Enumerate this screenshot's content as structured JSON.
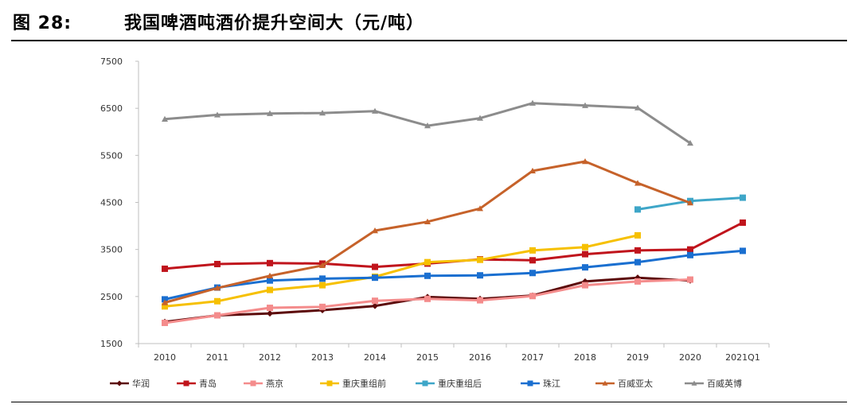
{
  "header": {
    "figure_number": "图 28:",
    "title": "我国啤酒吨酒价提升空间大（元/吨）"
  },
  "chart_data": {
    "type": "line",
    "title": "我国啤酒吨酒价提升空间大（元/吨）",
    "xlabel": "",
    "ylabel": "",
    "categories": [
      "2010",
      "2011",
      "2012",
      "2013",
      "2014",
      "2015",
      "2016",
      "2017",
      "2018",
      "2019",
      "2020",
      "2021Q1"
    ],
    "y_ticks": [
      1500,
      2500,
      3500,
      4500,
      5500,
      6500,
      7500
    ],
    "ylim": [
      1500,
      7500
    ],
    "grid": false,
    "legend_position": "bottom",
    "series": [
      {
        "name": "华润",
        "color": "#5c0a0a",
        "marker": "diamond",
        "values": [
          1960,
          2100,
          2140,
          2210,
          2300,
          2490,
          2450,
          2520,
          2820,
          2900,
          2840,
          null
        ]
      },
      {
        "name": "青岛",
        "color": "#c0141c",
        "marker": "square",
        "values": [
          3090,
          3190,
          3210,
          3200,
          3130,
          3200,
          3290,
          3270,
          3400,
          3480,
          3500,
          4070
        ]
      },
      {
        "name": "燕京",
        "color": "#f48c8c",
        "marker": "square",
        "values": [
          1940,
          2100,
          2260,
          2280,
          2410,
          2450,
          2420,
          2510,
          2740,
          2820,
          2860,
          null
        ]
      },
      {
        "name": "重庆重组前",
        "color": "#f6c000",
        "marker": "square",
        "values": [
          2290,
          2400,
          2640,
          2740,
          2920,
          3230,
          3280,
          3480,
          3550,
          3800,
          null,
          null
        ]
      },
      {
        "name": "重庆重组后",
        "color": "#3ea6c8",
        "marker": "square",
        "values": [
          null,
          null,
          null,
          null,
          null,
          null,
          null,
          null,
          null,
          4350,
          4530,
          4600
        ]
      },
      {
        "name": "珠江",
        "color": "#1a6fd0",
        "marker": "square",
        "values": [
          2440,
          2690,
          2840,
          2880,
          2900,
          2940,
          2950,
          3000,
          3120,
          3230,
          3380,
          3470
        ]
      },
      {
        "name": "百威亚太",
        "color": "#c6622a",
        "marker": "triangle",
        "values": [
          2370,
          2680,
          2940,
          3160,
          3900,
          4090,
          4370,
          5170,
          5370,
          4910,
          4490,
          null
        ]
      },
      {
        "name": "百威英博",
        "color": "#8c8c8c",
        "marker": "triangle",
        "values": [
          6270,
          6360,
          6390,
          6400,
          6440,
          6130,
          6290,
          6610,
          6560,
          6510,
          5760,
          null
        ]
      }
    ]
  }
}
